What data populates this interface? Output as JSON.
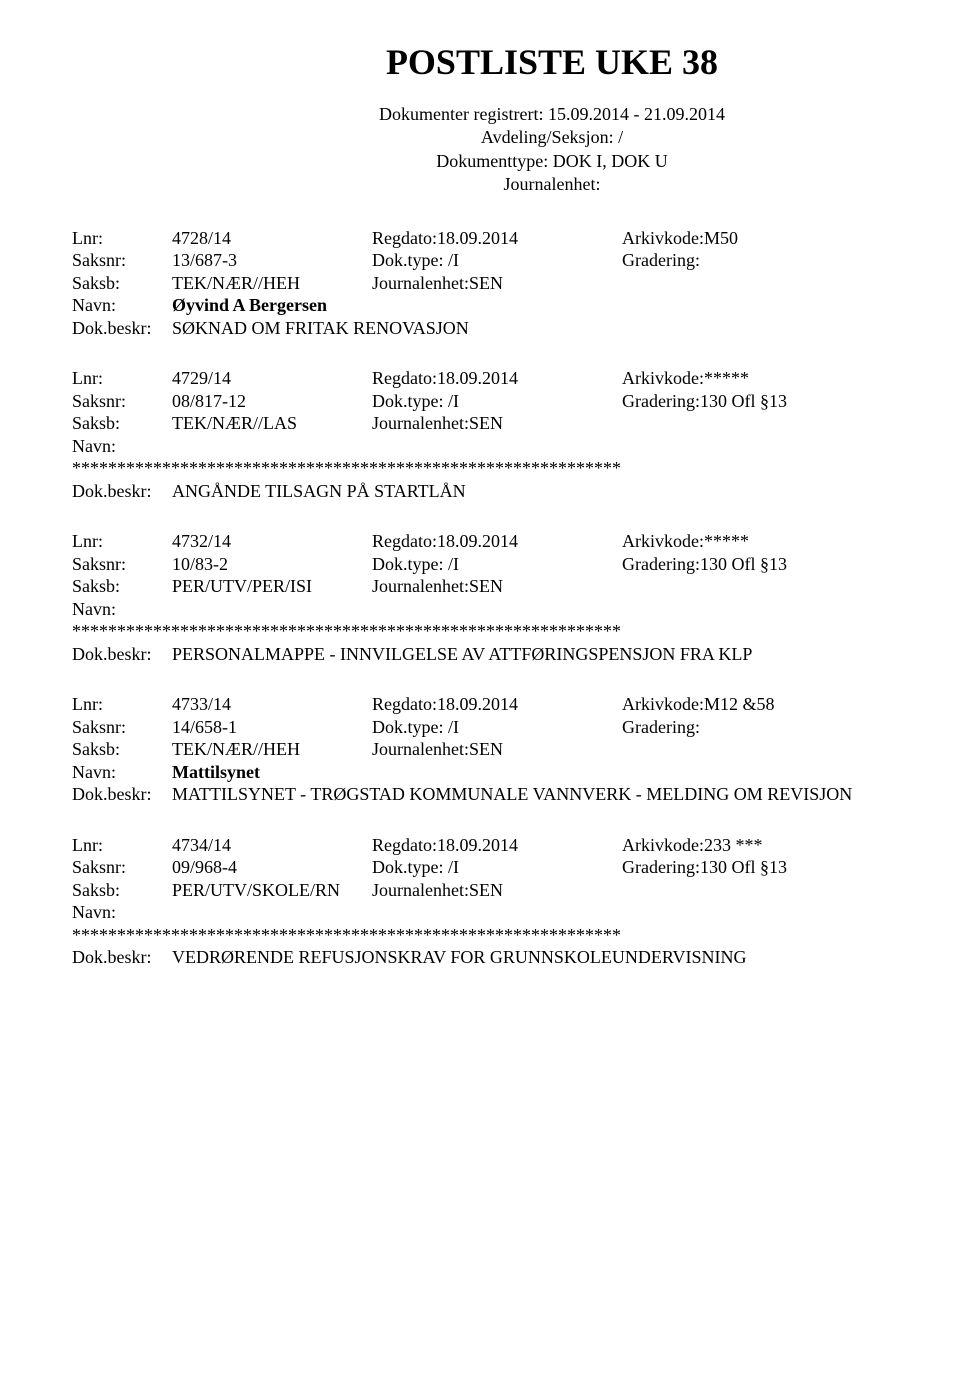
{
  "title": "POSTLISTE UKE 38",
  "header": {
    "line1": "Dokumenter registrert: 15.09.2014 - 21.09.2014",
    "line2": "Avdeling/Seksjon: /",
    "line3": "Dokumenttype: DOK I, DOK U",
    "line4": "Journalenhet:"
  },
  "labels": {
    "lnr": "Lnr:",
    "regdato": "Regdato:",
    "arkivkode": "Arkivkode:",
    "saksnr": "Saksnr:",
    "doktype": "Dok.type:",
    "gradering": "Gradering:",
    "saksb": "Saksb:",
    "journalenhet": "Journalenhet:",
    "navn": "Navn:",
    "dokbeskr": "Dok.beskr:"
  },
  "entries": [
    {
      "lnr": "4728/14",
      "regdato": "18.09.2014",
      "arkivkode": "M50",
      "saksnr": "13/687-3",
      "doktype": "/I",
      "gradering": "",
      "saksb": "TEK/NÆR//HEH",
      "journalenhet": "SEN",
      "navn": "Øyvind A Bergersen",
      "navn_bold": true,
      "stars": false,
      "beskr": "SØKNAD OM FRITAK RENOVASJON"
    },
    {
      "lnr": "4729/14",
      "regdato": "18.09.2014",
      "arkivkode": "*****",
      "saksnr": "08/817-12",
      "doktype": "/I",
      "gradering": "130 Ofl §13",
      "saksb": "TEK/NÆR//LAS",
      "journalenhet": "SEN",
      "navn": "",
      "navn_bold": false,
      "stars": true,
      "beskr": "ANGÅNDE TILSAGN PÅ STARTLÅN"
    },
    {
      "lnr": "4732/14",
      "regdato": "18.09.2014",
      "arkivkode": "*****",
      "saksnr": "10/83-2",
      "doktype": "/I",
      "gradering": "130 Ofl §13",
      "saksb": "PER/UTV/PER/ISI",
      "journalenhet": "SEN",
      "navn": "",
      "navn_bold": false,
      "stars": true,
      "beskr": "PERSONALMAPPE - INNVILGELSE AV ATTFØRINGSPENSJON FRA KLP"
    },
    {
      "lnr": "4733/14",
      "regdato": "18.09.2014",
      "arkivkode": "M12 &58",
      "saksnr": "14/658-1",
      "doktype": "/I",
      "gradering": "",
      "saksb": "TEK/NÆR//HEH",
      "journalenhet": "SEN",
      "navn": "Mattilsynet",
      "navn_bold": true,
      "stars": false,
      "beskr": "MATTILSYNET - TRØGSTAD KOMMUNALE VANNVERK - MELDING OM REVISJON"
    },
    {
      "lnr": "4734/14",
      "regdato": "18.09.2014",
      "arkivkode": "233 ***",
      "saksnr": "09/968-4",
      "doktype": "/I",
      "gradering": "130 Ofl §13",
      "saksb": "PER/UTV/SKOLE/RN",
      "journalenhet": "SEN",
      "navn": "",
      "navn_bold": false,
      "stars": true,
      "beskr": "VEDRØRENDE REFUSJONSKRAV FOR GRUNNSKOLEUNDERVISNING"
    }
  ],
  "stars_line": "*************************************************************"
}
